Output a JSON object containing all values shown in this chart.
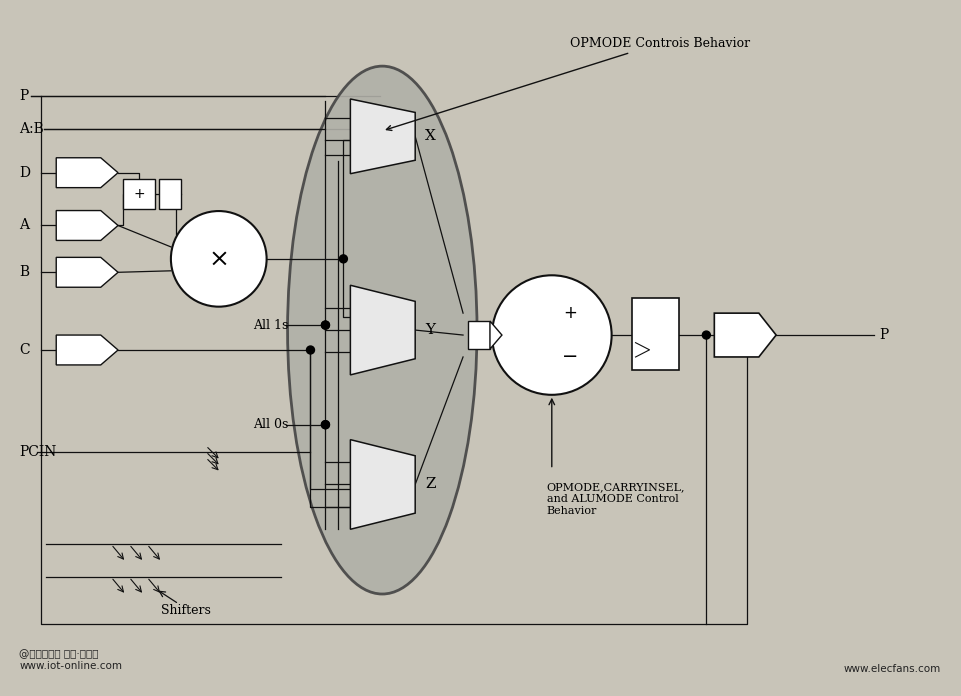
{
  "bg_color": "#c8c4b8",
  "line_color": "#111111",
  "mux_fill": "#e8e8e8",
  "oval_fill": "#b0b0a8",
  "watermark_left": "@物联网在线 智慧·创未来\nwww.iot-online.com",
  "watermark_right": "www.elecfans.com",
  "labels": {
    "P_in": "P",
    "AB": "A:B",
    "D": "D",
    "A": "A",
    "B": "B",
    "C": "C",
    "PCIN": "PCIN",
    "X": "X",
    "Y": "Y",
    "Z": "Z",
    "All1s": "All 1s",
    "All0s": "All 0s",
    "Shifters": "Shifters",
    "P_out": "P",
    "opmode1": "OPMODE Controis Behavior",
    "opmode2": "OPMODE,CARRYINSEL,\nand ALUMODE Control\nBehavior"
  }
}
